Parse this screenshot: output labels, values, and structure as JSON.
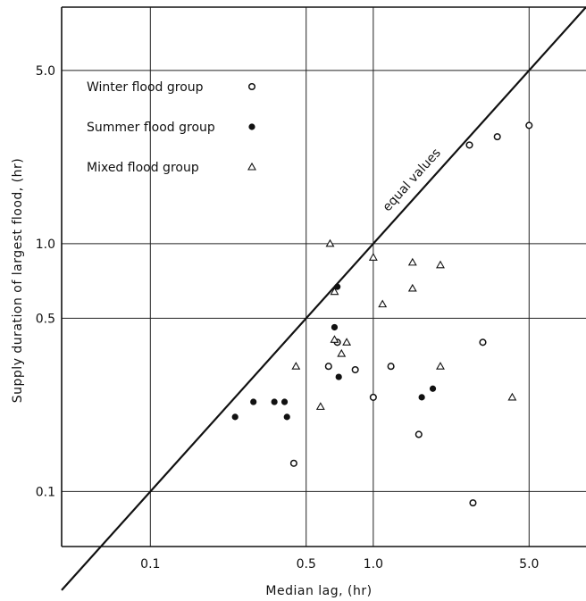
{
  "chart_data": {
    "type": "scatter",
    "xscale": "log",
    "yscale": "log",
    "xlim": [
      0.04,
      9.0
    ],
    "ylim": [
      0.06,
      9.0
    ],
    "grid": true,
    "xlabel": "Median lag, (hr)",
    "ylabel": "Supply duration of largest flood, (hr)",
    "xticks": [
      {
        "value": 0.1,
        "label": "0.1"
      },
      {
        "value": 0.5,
        "label": "0.5"
      },
      {
        "value": 1.0,
        "label": "1.0"
      },
      {
        "value": 5.0,
        "label": "5.0"
      }
    ],
    "yticks": [
      {
        "value": 0.1,
        "label": "0.1"
      },
      {
        "value": 0.5,
        "label": "0.5"
      },
      {
        "value": 1.0,
        "label": "1.0"
      },
      {
        "value": 5.0,
        "label": "5.0"
      }
    ],
    "legend_position": "top-left",
    "reference_line": {
      "label": "equal values",
      "from": [
        0.04,
        0.04
      ],
      "to": [
        9.0,
        9.0
      ]
    },
    "series": [
      {
        "name": "Winter flood group",
        "marker": "open-circle",
        "points": [
          [
            0.44,
            0.13
          ],
          [
            0.63,
            0.32
          ],
          [
            0.69,
            0.4
          ],
          [
            0.83,
            0.31
          ],
          [
            1.0,
            0.24
          ],
          [
            1.2,
            0.32
          ],
          [
            1.6,
            0.17
          ],
          [
            2.8,
            0.09
          ],
          [
            3.1,
            0.4
          ],
          [
            2.7,
            2.5
          ],
          [
            3.6,
            2.7
          ],
          [
            5.0,
            3.0
          ]
        ]
      },
      {
        "name": "Summer flood group",
        "marker": "filled-circle",
        "points": [
          [
            0.24,
            0.2
          ],
          [
            0.29,
            0.23
          ],
          [
            0.36,
            0.23
          ],
          [
            0.4,
            0.23
          ],
          [
            0.41,
            0.2
          ],
          [
            0.67,
            0.46
          ],
          [
            0.69,
            0.67
          ],
          [
            0.7,
            0.29
          ],
          [
            1.65,
            0.24
          ],
          [
            1.85,
            0.26
          ]
        ]
      },
      {
        "name": "Mixed flood group",
        "marker": "open-triangle",
        "points": [
          [
            0.45,
            0.32
          ],
          [
            0.58,
            0.22
          ],
          [
            0.64,
            1.0
          ],
          [
            0.67,
            0.64
          ],
          [
            0.67,
            0.41
          ],
          [
            0.72,
            0.36
          ],
          [
            0.76,
            0.4
          ],
          [
            1.0,
            0.88
          ],
          [
            1.1,
            0.57
          ],
          [
            1.5,
            0.84
          ],
          [
            1.5,
            0.66
          ],
          [
            2.0,
            0.82
          ],
          [
            2.0,
            0.32
          ],
          [
            4.2,
            0.24
          ]
        ]
      }
    ]
  }
}
